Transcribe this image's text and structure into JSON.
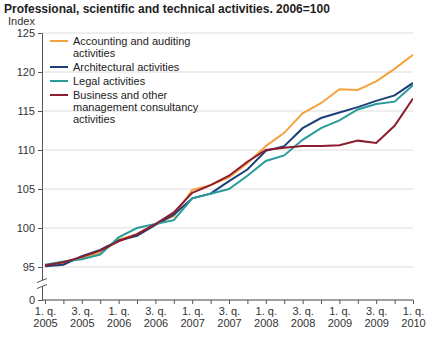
{
  "chart_data": {
    "type": "line",
    "title": "Professional, scientific and technical activities. 2006=100",
    "y_label": "Index",
    "categories": [
      "1. q. 2005",
      null,
      "3. q. 2005",
      null,
      "1. q. 2006",
      null,
      "3. q. 2006",
      null,
      "1. q. 2007",
      null,
      "3. q. 2007",
      null,
      "1. q. 2008",
      null,
      "3. q. 2008",
      null,
      "1. q. 2009",
      null,
      "3. q. 2009",
      null,
      "1. q. 2010"
    ],
    "series": [
      {
        "name": "Accounting and auditing activities",
        "color": "#f4a23d",
        "values": [
          95.2,
          95.5,
          96.2,
          96.8,
          98.5,
          99.2,
          100.5,
          101.5,
          104.9,
          105.5,
          106.5,
          108.3,
          110.5,
          112.2,
          114.7,
          116.0,
          117.8,
          117.7,
          118.8,
          120.4,
          122.2
        ]
      },
      {
        "name": "Architectural activities",
        "color": "#1d3f7a",
        "values": [
          95.1,
          95.3,
          96.4,
          97.2,
          98.4,
          99.0,
          100.4,
          101.7,
          103.8,
          104.4,
          106.0,
          107.5,
          109.9,
          110.5,
          112.8,
          114.1,
          114.8,
          115.5,
          116.3,
          117.0,
          118.6
        ]
      },
      {
        "name": "Legal activities",
        "color": "#2a9b9b",
        "values": [
          95.3,
          95.7,
          96.0,
          96.6,
          98.8,
          100.0,
          100.5,
          101.0,
          103.8,
          104.4,
          105.0,
          106.7,
          108.6,
          109.3,
          111.3,
          112.8,
          113.8,
          115.2,
          115.9,
          116.2,
          118.3
        ]
      },
      {
        "name": "Business and other management consultancy activities",
        "color": "#8c1c2e",
        "values": [
          95.2,
          95.6,
          96.3,
          97.1,
          98.3,
          99.2,
          100.5,
          102.0,
          104.5,
          105.5,
          106.7,
          108.5,
          110.0,
          110.3,
          110.5,
          110.5,
          110.6,
          111.2,
          110.9,
          113.1,
          116.6
        ]
      }
    ],
    "ylim": [
      0,
      125
    ],
    "yticks": [
      0,
      95,
      100,
      105,
      110,
      115,
      120,
      125
    ],
    "grid": true,
    "legend": "top-left"
  }
}
